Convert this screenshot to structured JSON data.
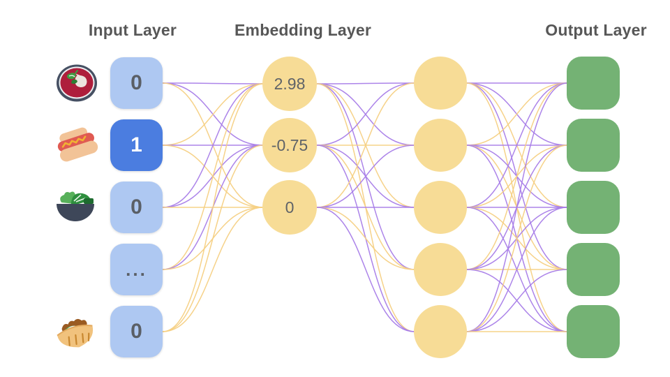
{
  "titles": {
    "input": "Input Layer",
    "embedding": "Embedding Layer",
    "output": "Output Layer"
  },
  "input_layer": {
    "nodes": [
      {
        "value": "0",
        "active": false,
        "icon": "borscht-soup"
      },
      {
        "value": "1",
        "active": true,
        "icon": "hot-dog"
      },
      {
        "value": "0",
        "active": false,
        "icon": "salad"
      },
      {
        "value": "...",
        "active": false,
        "icon": "none"
      },
      {
        "value": "0",
        "active": false,
        "icon": "pita"
      }
    ]
  },
  "embedding_layer": {
    "nodes": [
      {
        "value": "2.98"
      },
      {
        "value": "-0.75"
      },
      {
        "value": "0"
      }
    ]
  },
  "hidden_layer": {
    "node_count": 5
  },
  "output_layer": {
    "node_count": 5
  },
  "colors": {
    "input_node": "#aec8f2",
    "input_node_active": "#4b7de0",
    "embedding_node": "#f7dc96",
    "hidden_node": "#f7dc96",
    "output_node": "#74b274",
    "title_text": "#575757",
    "node_text": "#5a5f66",
    "edge": {
      "P": "#a87de8",
      "Y": "#f5d083"
    }
  },
  "edges": {
    "input_to_embedding": [
      [
        "P",
        "P",
        "Y"
      ],
      [
        "Y",
        "P",
        "Y"
      ],
      [
        "P",
        "P",
        "Y"
      ],
      [
        "Y",
        "P",
        "Y"
      ],
      [
        "Y",
        "Y",
        "Y"
      ]
    ],
    "embedding_to_hidden": [
      [
        "P",
        "P",
        "Y",
        "P",
        "Y"
      ],
      [
        "P",
        "Y",
        "P",
        "Y",
        "P"
      ],
      [
        "Y",
        "P",
        "P",
        "Y",
        "P"
      ]
    ],
    "hidden_to_output": [
      [
        "P",
        "P",
        "Y",
        "P",
        "Y"
      ],
      [
        "Y",
        "P",
        "P",
        "Y",
        "P"
      ],
      [
        "P",
        "Y",
        "P",
        "Y",
        "P"
      ],
      [
        "Y",
        "P",
        "P",
        "Y",
        "P"
      ],
      [
        "P",
        "Y",
        "P",
        "P",
        "Y"
      ]
    ]
  }
}
